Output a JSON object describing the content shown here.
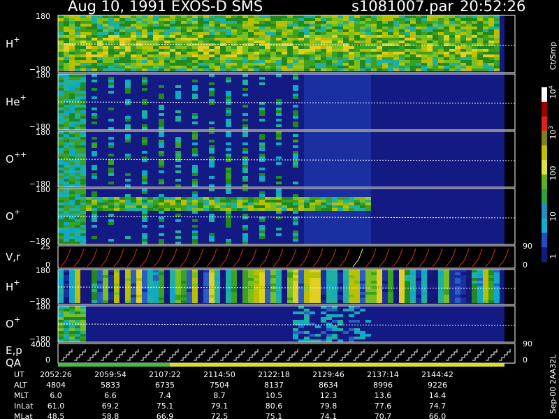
{
  "header": {
    "title": "Aug 10, 1991   EXOS-D SMS",
    "file": "s1081007.par",
    "time": "20:52:26"
  },
  "panels": [
    {
      "label": "H",
      "sup": "+",
      "ticks": [
        "180",
        "−180"
      ]
    },
    {
      "label": "He",
      "sup": "+",
      "ticks": [
        "180",
        "−180"
      ]
    },
    {
      "label": "O",
      "sup": "++",
      "ticks": [
        "180",
        "−180"
      ]
    },
    {
      "label": "O",
      "sup": "+",
      "ticks": [
        "180",
        "−180"
      ]
    },
    {
      "label": "V,r",
      "ticks": [
        "25",
        "0"
      ],
      "right_ticks": [
        "90",
        "0"
      ]
    },
    {
      "label": "H",
      "sup": "+",
      "ticks": [
        "180",
        "−180"
      ]
    },
    {
      "label": "O",
      "sup": "+",
      "ticks": [
        "180",
        "−180"
      ]
    },
    {
      "label": "E,p",
      "label2": "QA",
      "ticks": [
        "4000",
        "0"
      ],
      "right_ticks": [
        "90",
        "0"
      ]
    }
  ],
  "colorbar": {
    "unit": "Ct/Smp",
    "ticks": [
      {
        "base": "1"
      },
      {
        "base": "10"
      },
      {
        "base": "100"
      },
      {
        "base": "10",
        "exp": "3"
      },
      {
        "base": "10",
        "exp": "4"
      }
    ]
  },
  "table": {
    "rows": [
      {
        "name": "UT",
        "values": [
          "2052:26",
          "2059:54",
          "2107:22",
          "2114:50",
          "2122:18",
          "2129:46",
          "2137:14",
          "2144:42"
        ]
      },
      {
        "name": "ALT",
        "values": [
          "4804",
          "5833",
          "6735",
          "7504",
          "8137",
          "8634",
          "8996",
          "9226"
        ]
      },
      {
        "name": "MLT",
        "values": [
          "6.0",
          "6.6",
          "7.4",
          "8.7",
          "10.5",
          "12.3",
          "13.6",
          "14.4"
        ]
      },
      {
        "name": "InLat",
        "values": [
          "61.0",
          "69.2",
          "75.1",
          "79.1",
          "80.6",
          "79.8",
          "77.6",
          "74.7"
        ]
      },
      {
        "name": "MLat",
        "values": [
          "48.5",
          "58.8",
          "66.9",
          "72.5",
          "75.1",
          "74.1",
          "70.7",
          "66.0"
        ]
      }
    ]
  },
  "footer": {
    "note": "Sep-00  2AA32L"
  }
}
